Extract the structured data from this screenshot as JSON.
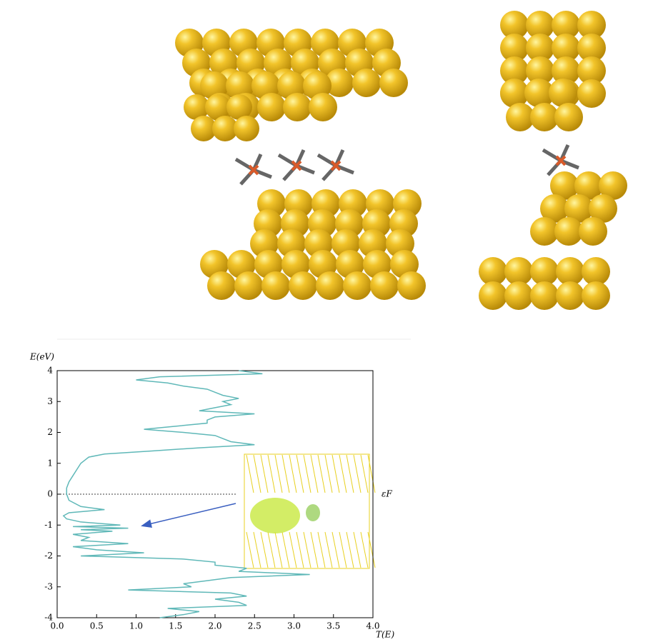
{
  "chart_data": {
    "type": "line",
    "ylabel": "E(eV)",
    "xlabel": "T(E)",
    "xlim": [
      0,
      4
    ],
    "ylim": [
      -4,
      4
    ],
    "xticks": [
      {
        "value": 0,
        "label": "0.0"
      },
      0.5,
      {
        "value": 1,
        "label": "1.0"
      },
      1.5,
      {
        "value": 2,
        "label": "2.0"
      },
      2.5,
      {
        "value": 3,
        "label": "3.0"
      },
      3.5,
      {
        "value": 4,
        "label": "4.0"
      }
    ],
    "yticks": [
      -4,
      -3,
      -2,
      -1,
      0,
      1,
      2,
      3,
      4
    ],
    "reference_line": {
      "value": 0,
      "label": "εF"
    },
    "series": [
      {
        "color": "#5fb8b8",
        "y": [
          4.0,
          3.9,
          3.8,
          3.7,
          3.6,
          3.5,
          3.4,
          3.3,
          3.2,
          3.1,
          3.0,
          2.9,
          2.8,
          2.7,
          2.6,
          2.5,
          2.4,
          2.3,
          2.2,
          2.1,
          2.0,
          1.9,
          1.8,
          1.7,
          1.6,
          1.5,
          1.4,
          1.3,
          1.2,
          1.1,
          1.0,
          0.8,
          0.6,
          0.4,
          0.2,
          0.0,
          -0.2,
          -0.4,
          -0.5,
          -0.6,
          -0.7,
          -0.8,
          -0.9,
          -1.0,
          -1.05,
          -1.1,
          -1.15,
          -1.2,
          -1.3,
          -1.4,
          -1.5,
          -1.6,
          -1.7,
          -1.8,
          -1.9,
          -2.0,
          -2.1,
          -2.2,
          -2.3,
          -2.4,
          -2.5,
          -2.6,
          -2.7,
          -2.8,
          -2.9,
          -3.0,
          -3.1,
          -3.2,
          -3.3,
          -3.4,
          -3.5,
          -3.6,
          -3.7,
          -3.8,
          -3.9,
          -4.0
        ],
        "values": [
          2.3,
          2.6,
          1.3,
          1.0,
          1.4,
          1.6,
          1.9,
          2.0,
          2.1,
          2.3,
          2.1,
          2.2,
          2.0,
          1.8,
          2.5,
          2.0,
          1.9,
          1.9,
          1.5,
          1.1,
          1.6,
          2.0,
          2.1,
          2.2,
          2.5,
          1.8,
          1.2,
          0.6,
          0.4,
          0.35,
          0.3,
          0.25,
          0.2,
          0.15,
          0.12,
          0.12,
          0.15,
          0.3,
          0.6,
          0.15,
          0.08,
          0.12,
          0.3,
          0.8,
          0.2,
          0.9,
          0.3,
          0.7,
          0.2,
          0.4,
          0.3,
          0.9,
          0.2,
          0.5,
          1.1,
          0.3,
          1.6,
          2.0,
          2.0,
          2.4,
          2.3,
          3.2,
          2.2,
          1.9,
          1.6,
          1.7,
          0.9,
          2.2,
          2.4,
          2.0,
          2.3,
          2.4,
          1.4,
          1.8,
          1.6,
          1.3
        ]
      }
    ]
  }
}
